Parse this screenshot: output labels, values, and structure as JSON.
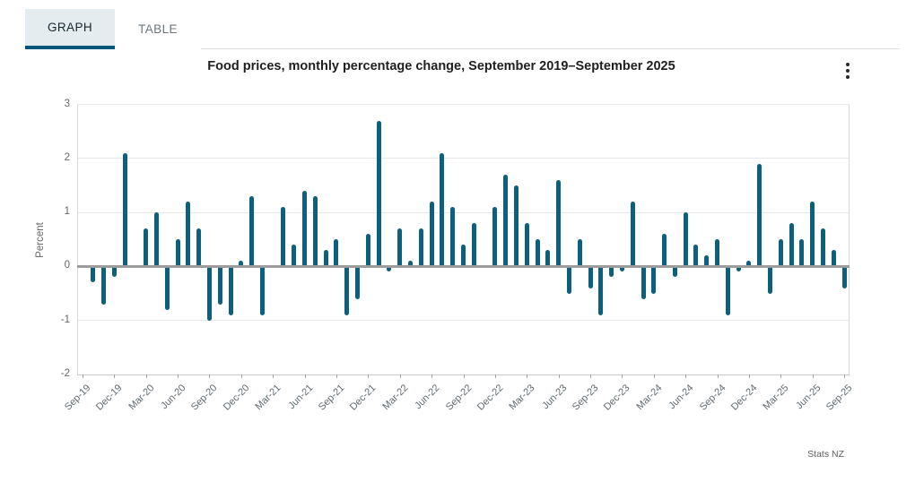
{
  "tabs": {
    "graph_label": "GRAPH",
    "table_label": "TABLE"
  },
  "header": {
    "title": "Food prices, monthly percentage change, September 2019–September 2025",
    "menu_icon": "kebab-menu"
  },
  "source_credit": "Stats NZ",
  "colors": {
    "bar": "#0d5f7e",
    "active_tab_underline": "#00567a",
    "active_tab_background": "#e4ecf0",
    "zero_line": "#9c9c9c",
    "gridline": "#e8e8e8"
  },
  "chart_data": {
    "type": "bar",
    "title": "Food prices, monthly percentage change, September 2019–September 2025",
    "xlabel": "",
    "ylabel": "Percent",
    "ylim": [
      -2,
      3
    ],
    "yticks": [
      "3",
      "2",
      "1",
      "0",
      "-1",
      "-2"
    ],
    "grid": true,
    "legend": "none",
    "xtick_labels": [
      "Sep-19",
      "Dec-19",
      "Mar-20",
      "Jun-20",
      "Sep-20",
      "Dec-20",
      "Mar-21",
      "Jun-21",
      "Sep-21",
      "Dec-21",
      "Mar-22",
      "Jun-22",
      "Sep-22",
      "Dec-22",
      "Mar-23",
      "Jun-23",
      "Sep-23",
      "Dec-23",
      "Mar-24",
      "Jun-24",
      "Sep-24",
      "Dec-24",
      "Mar-25",
      "Jun-25",
      "Sep-25"
    ],
    "xtick_every": 3,
    "categories": [
      "Sep-19",
      "Oct-19",
      "Nov-19",
      "Dec-19",
      "Jan-20",
      "Feb-20",
      "Mar-20",
      "Apr-20",
      "May-20",
      "Jun-20",
      "Jul-20",
      "Aug-20",
      "Sep-20",
      "Oct-20",
      "Nov-20",
      "Dec-20",
      "Jan-21",
      "Feb-21",
      "Mar-21",
      "Apr-21",
      "May-21",
      "Jun-21",
      "Jul-21",
      "Aug-21",
      "Sep-21",
      "Oct-21",
      "Nov-21",
      "Dec-21",
      "Jan-22",
      "Feb-22",
      "Mar-22",
      "Apr-22",
      "May-22",
      "Jun-22",
      "Jul-22",
      "Aug-22",
      "Sep-22",
      "Oct-22",
      "Nov-22",
      "Dec-22",
      "Jan-23",
      "Feb-23",
      "Mar-23",
      "Apr-23",
      "May-23",
      "Jun-23",
      "Jul-23",
      "Aug-23",
      "Sep-23",
      "Oct-23",
      "Nov-23",
      "Dec-23",
      "Jan-24",
      "Feb-24",
      "Mar-24",
      "Apr-24",
      "May-24",
      "Jun-24",
      "Jul-24",
      "Aug-24",
      "Sep-24",
      "Oct-24",
      "Nov-24",
      "Dec-24",
      "Jan-25",
      "Feb-25",
      "Mar-25",
      "Apr-25",
      "May-25",
      "Jun-25",
      "Jul-25",
      "Aug-25",
      "Sep-25"
    ],
    "values": [
      0.0,
      -0.3,
      -0.7,
      -0.2,
      2.1,
      0.0,
      0.7,
      1.0,
      -0.8,
      0.5,
      1.2,
      0.7,
      -1.0,
      -0.7,
      -0.9,
      0.1,
      1.3,
      -0.9,
      0.0,
      1.1,
      0.4,
      1.4,
      1.3,
      0.3,
      0.5,
      -0.9,
      -0.6,
      0.6,
      2.7,
      -0.1,
      0.7,
      0.1,
      0.7,
      1.2,
      2.1,
      1.1,
      0.4,
      0.8,
      0.0,
      1.1,
      1.7,
      1.5,
      0.8,
      0.5,
      0.3,
      1.6,
      -0.5,
      0.5,
      -0.4,
      -0.9,
      -0.2,
      -0.1,
      1.2,
      -0.6,
      -0.5,
      0.6,
      -0.2,
      1.0,
      0.4,
      0.2,
      0.5,
      -0.9,
      -0.1,
      0.1,
      1.9,
      -0.5,
      0.5,
      0.8,
      0.5,
      1.2,
      0.7,
      0.3,
      -0.4
    ]
  }
}
